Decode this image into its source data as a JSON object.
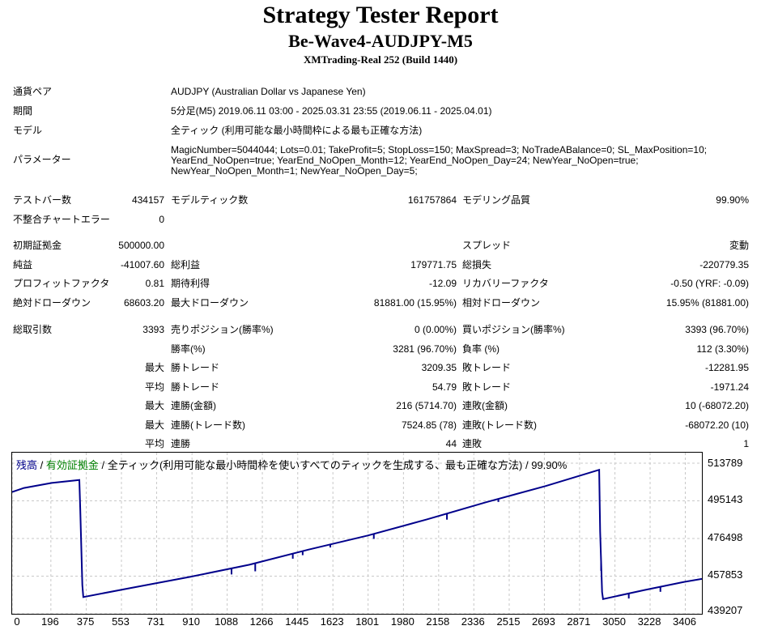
{
  "header": {
    "title": "Strategy Tester Report",
    "subtitle": "Be-Wave4-AUDJPY-M5",
    "server": "XMTrading-Real 252 (Build 1440)"
  },
  "info": [
    {
      "label": "通貨ペア",
      "value": "AUDJPY (Australian Dollar vs Japanese Yen)"
    },
    {
      "label": "期間",
      "value": "5分足(M5) 2019.06.11 03:00 - 2025.03.31 23:55 (2019.06.11 - 2025.04.01)"
    },
    {
      "label": "モデル",
      "value": "全ティック (利用可能な最小時間枠による最も正確な方法)"
    },
    {
      "label": "パラメーター",
      "lines": [
        "MagicNumber=5044044; Lots=0.01; TakeProfit=5; StopLoss=150; MaxSpread=3; NoTradeABalance=0; SL_MaxPosition=10;",
        "YearEnd_NoOpen=true; YearEnd_NoOpen_Month=12; YearEnd_NoOpen_Day=24; NewYear_NoOpen=true;",
        "NewYear_NoOpen_Month=1; NewYear_NoOpen_Day=5;"
      ]
    }
  ],
  "rows": [
    {
      "y": 240,
      "c": [
        [
          "テストバー数",
          "434157"
        ],
        [
          "モデルティック数",
          "161757864"
        ],
        [
          "モデリング品質",
          "99.90%"
        ]
      ]
    },
    {
      "y": 264,
      "c": [
        [
          "不整合チャートエラー",
          "0"
        ]
      ]
    },
    {
      "y": 296,
      "c": [
        [
          "初期証拠金",
          "500000.00"
        ],
        [
          "",
          ""
        ],
        [
          "スプレッド",
          "変動"
        ]
      ]
    },
    {
      "y": 320,
      "c": [
        [
          "純益",
          "-41007.60"
        ],
        [
          "総利益",
          "179771.75"
        ],
        [
          "総損失",
          "-220779.35"
        ]
      ]
    },
    {
      "y": 343,
      "c": [
        [
          "プロフィットファクタ",
          "0.81"
        ],
        [
          "期待利得",
          "-12.09"
        ],
        [
          "リカバリーファクタ",
          "-0.50 (YRF: -0.09)"
        ]
      ]
    },
    {
      "y": 367,
      "c": [
        [
          "絶対ドローダウン",
          "68603.20"
        ],
        [
          "最大ドローダウン",
          "81881.00 (15.95%)"
        ],
        [
          "相対ドローダウン",
          "15.95% (81881.00)"
        ]
      ]
    },
    {
      "y": 400,
      "c": [
        [
          "総取引数",
          "3393"
        ],
        [
          "売りポジション(勝率%)",
          "0 (0.00%)"
        ],
        [
          "買いポジション(勝率%)",
          "3393 (96.70%)"
        ]
      ]
    }
  ],
  "subrows": [
    {
      "y": 424,
      "p": "",
      "c": [
        [
          "勝率(%)",
          "3281 (96.70%)"
        ],
        [
          "負率 (%)",
          "112 (3.30%)"
        ]
      ]
    },
    {
      "y": 447,
      "p": "最大",
      "c": [
        [
          "勝トレード",
          "3209.35"
        ],
        [
          "敗トレード",
          "-12281.95"
        ]
      ]
    },
    {
      "y": 471,
      "p": "平均",
      "c": [
        [
          "勝トレード",
          "54.79"
        ],
        [
          "敗トレード",
          "-1971.24"
        ]
      ]
    },
    {
      "y": 494,
      "p": "最大",
      "c": [
        [
          "連勝(金額)",
          "216 (5714.70)"
        ],
        [
          "連敗(金額)",
          "10 (-68072.20)"
        ]
      ]
    },
    {
      "y": 518,
      "p": "最大",
      "c": [
        [
          "連勝(トレード数)",
          "7524.85 (78)"
        ],
        [
          "連敗(トレード数)",
          "-68072.20 (10)"
        ]
      ]
    },
    {
      "y": 541,
      "p": "平均",
      "c": [
        [
          "連勝",
          "44"
        ],
        [
          "連敗",
          "1"
        ]
      ]
    }
  ],
  "chart_data": {
    "type": "line",
    "legend": {
      "balance": "残高",
      "sep1": " / ",
      "equity": "有効証拠金",
      "sep2": " / ",
      "rest": "全ティック(利用可能な最小時間枠を使いすべてのティックを生成する、最も正確な方法) / 99.90%"
    },
    "y_ticks": [
      "513789",
      "495143",
      "476498",
      "457853",
      "439207"
    ],
    "y_tick_values": [
      513789,
      495143,
      476498,
      457853,
      439207
    ],
    "x_ticks": [
      "0",
      "196",
      "375",
      "553",
      "731",
      "910",
      "1088",
      "1266",
      "1445",
      "1623",
      "1801",
      "1980",
      "2158",
      "2336",
      "2515",
      "2693",
      "2871",
      "3050",
      "3228",
      "3406"
    ],
    "x_tick_values": [
      0,
      196,
      375,
      553,
      731,
      910,
      1088,
      1266,
      1445,
      1623,
      1801,
      1980,
      2158,
      2336,
      2515,
      2693,
      2871,
      3050,
      3228,
      3406
    ],
    "xlim": [
      0,
      3490
    ],
    "ylim": [
      439207,
      519000
    ],
    "series": [
      {
        "name": "残高",
        "color": "#00008b",
        "x": [
          0,
          60,
          200,
          340,
          345,
          355,
          360,
          600,
          900,
          1200,
          1500,
          1800,
          2100,
          2400,
          2700,
          2970,
          2975,
          2985,
          2990,
          3200,
          3400,
          3490
        ],
        "y": [
          499500,
          501500,
          504000,
          505500,
          490000,
          453500,
          447500,
          452000,
          457500,
          463500,
          471000,
          478000,
          486000,
          494500,
          502500,
          510500,
          480000,
          450000,
          446500,
          451000,
          455000,
          456500
        ]
      }
    ],
    "spikes": [
      [
        1110,
        3000
      ],
      [
        1230,
        4000
      ],
      [
        1420,
        2500
      ],
      [
        1470,
        2000
      ],
      [
        1610,
        1500
      ],
      [
        1830,
        2500
      ],
      [
        2200,
        3000
      ],
      [
        2460,
        1500
      ],
      [
        2980,
        4500
      ],
      [
        3120,
        2500
      ],
      [
        3280,
        2500
      ]
    ],
    "colors": {
      "balance": "#00008b",
      "equity": "#008000",
      "grid": "#c8c8c8"
    }
  }
}
